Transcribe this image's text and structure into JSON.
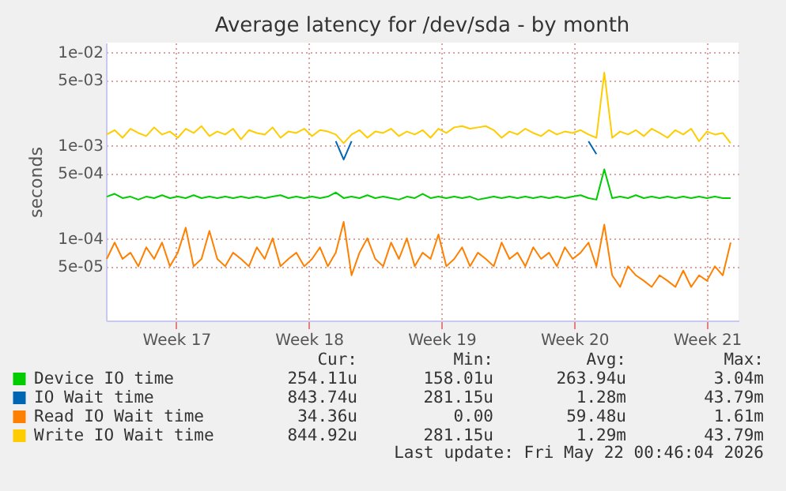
{
  "chart_data": {
    "type": "line",
    "title": "Average latency for /dev/sda - by month",
    "ylabel": "seconds",
    "log": "y",
    "grid": true,
    "legend": "bottom left",
    "xlim": [
      "2026-04-19T19:00",
      "2026-05-23T04:00"
    ],
    "xticks": [
      {
        "value": "2026-04-23T12:00",
        "label": "Week 17"
      },
      {
        "value": "2026-04-30T12:00",
        "label": "Week 18"
      },
      {
        "value": "2026-05-07T12:00",
        "label": "Week 19"
      },
      {
        "value": "2026-05-14T12:00",
        "label": "Week 20"
      },
      {
        "value": "2026-05-21T12:00",
        "label": "Week 21"
      }
    ],
    "ylim": [
      1.31e-05,
      0.0126
    ],
    "yticks": [
      {
        "value": 5e-05,
        "label": "5e-05"
      },
      {
        "value": 0.0001,
        "label": "1e-04"
      },
      {
        "value": 0.0005,
        "label": "5e-04"
      },
      {
        "value": 0.001,
        "label": "1e-03"
      },
      {
        "value": 0.005,
        "label": "5e-03"
      },
      {
        "value": 0.01,
        "label": "1e-02"
      }
    ],
    "x": [
      "2026-04-19T20:00",
      "2026-04-20T06:00",
      "2026-04-20T16:00",
      "2026-04-21T02:00",
      "2026-04-21T12:00",
      "2026-04-21T22:00",
      "2026-04-22T08:00",
      "2026-04-22T18:00",
      "2026-04-23T04:00",
      "2026-04-23T14:00",
      "2026-04-24T00:00",
      "2026-04-24T10:00",
      "2026-04-24T20:00",
      "2026-04-25T06:00",
      "2026-04-25T16:00",
      "2026-04-26T02:00",
      "2026-04-26T12:00",
      "2026-04-26T22:00",
      "2026-04-27T08:00",
      "2026-04-27T18:00",
      "2026-04-28T04:00",
      "2026-04-28T14:00",
      "2026-04-29T00:00",
      "2026-04-29T10:00",
      "2026-04-29T20:00",
      "2026-04-30T06:00",
      "2026-04-30T16:00",
      "2026-05-01T02:00",
      "2026-05-01T12:00",
      "2026-05-01T22:00",
      "2026-05-02T08:00",
      "2026-05-02T18:00",
      "2026-05-03T04:00",
      "2026-05-03T14:00",
      "2026-05-04T00:00",
      "2026-05-04T10:00",
      "2026-05-04T20:00",
      "2026-05-05T06:00",
      "2026-05-05T16:00",
      "2026-05-06T02:00",
      "2026-05-06T12:00",
      "2026-05-06T22:00",
      "2026-05-07T08:00",
      "2026-05-07T18:00",
      "2026-05-08T04:00",
      "2026-05-08T14:00",
      "2026-05-09T00:00",
      "2026-05-09T10:00",
      "2026-05-09T20:00",
      "2026-05-10T06:00",
      "2026-05-10T16:00",
      "2026-05-11T02:00",
      "2026-05-11T12:00",
      "2026-05-11T22:00",
      "2026-05-12T08:00",
      "2026-05-12T18:00",
      "2026-05-13T04:00",
      "2026-05-13T14:00",
      "2026-05-14T00:00",
      "2026-05-14T10:00",
      "2026-05-14T20:00",
      "2026-05-15T06:00",
      "2026-05-15T16:00",
      "2026-05-16T02:00",
      "2026-05-16T12:00",
      "2026-05-16T22:00",
      "2026-05-17T08:00",
      "2026-05-17T18:00",
      "2026-05-18T04:00",
      "2026-05-18T14:00",
      "2026-05-19T00:00",
      "2026-05-19T10:00",
      "2026-05-19T20:00",
      "2026-05-20T06:00",
      "2026-05-20T16:00",
      "2026-05-21T02:00",
      "2026-05-21T12:00",
      "2026-05-21T22:00",
      "2026-05-22T08:00",
      "2026-05-22T18:00"
    ],
    "series": [
      {
        "name": "Device IO time",
        "color": "#00cc00",
        "values": [
          0.00028,
          0.0003,
          0.00027,
          0.00028,
          0.00026,
          0.00028,
          0.00027,
          0.00029,
          0.00027,
          0.00028,
          0.00027,
          0.00029,
          0.00027,
          0.00028,
          0.00027,
          0.00028,
          0.00027,
          0.00028,
          0.00027,
          0.00028,
          0.00027,
          0.00028,
          0.00029,
          0.00027,
          0.00028,
          0.00027,
          0.00028,
          0.00027,
          0.00028,
          0.00031,
          0.00027,
          0.00028,
          0.00027,
          0.00029,
          0.00027,
          0.00028,
          0.00027,
          0.00026,
          0.00028,
          0.00027,
          0.0003,
          0.00027,
          0.00028,
          0.00027,
          0.00028,
          0.00027,
          0.00028,
          0.00026,
          0.00027,
          0.00028,
          0.00027,
          0.00028,
          0.00027,
          0.00028,
          0.00027,
          0.00028,
          0.00027,
          0.00028,
          0.00027,
          0.00028,
          0.00029,
          0.00027,
          0.00026,
          0.00055,
          0.00027,
          0.00028,
          0.00027,
          0.00029,
          0.00027,
          0.00028,
          0.00027,
          0.00028,
          0.00027,
          0.00028,
          0.00027,
          0.00028,
          0.00027,
          0.00028,
          0.00027,
          0.00027
        ]
      },
      {
        "name": "IO Wait time",
        "color": "#0066b3",
        "values": [
          null,
          null,
          null,
          null,
          null,
          null,
          null,
          null,
          null,
          null,
          null,
          null,
          null,
          null,
          null,
          null,
          null,
          null,
          null,
          null,
          null,
          null,
          null,
          null,
          null,
          null,
          null,
          null,
          null,
          0.0011,
          0.0007,
          0.0011,
          null,
          null,
          null,
          null,
          null,
          null,
          null,
          null,
          null,
          null,
          null,
          null,
          null,
          null,
          null,
          null,
          null,
          null,
          null,
          null,
          null,
          null,
          null,
          null,
          null,
          null,
          null,
          null,
          null,
          0.0011,
          0.0008,
          null,
          null,
          null,
          null,
          null,
          null,
          null,
          null,
          null,
          null,
          null,
          null,
          null,
          null,
          null,
          null,
          null
        ]
      },
      {
        "name": "Read IO Wait time",
        "color": "#ff8000",
        "values": [
          6e-05,
          9e-05,
          6e-05,
          7e-05,
          5e-05,
          8e-05,
          6e-05,
          9e-05,
          5e-05,
          7e-05,
          0.00013,
          5e-05,
          6e-05,
          0.00012,
          6e-05,
          5e-05,
          7e-05,
          6e-05,
          5e-05,
          8e-05,
          6e-05,
          0.0001,
          5e-05,
          6e-05,
          7e-05,
          5e-05,
          6e-05,
          8e-05,
          5e-05,
          7e-05,
          0.00015,
          4e-05,
          7e-05,
          0.0001,
          6e-05,
          5e-05,
          9e-05,
          6e-05,
          0.0001,
          5e-05,
          7e-05,
          6e-05,
          0.00011,
          5e-05,
          6e-05,
          8e-05,
          5e-05,
          7e-05,
          6e-05,
          5e-05,
          9e-05,
          6e-05,
          7e-05,
          5e-05,
          8e-05,
          6e-05,
          7e-05,
          5e-05,
          8e-05,
          6e-05,
          7e-05,
          9e-05,
          5e-05,
          0.00014,
          4e-05,
          3e-05,
          5e-05,
          4e-05,
          3.5e-05,
          3e-05,
          4e-05,
          3.5e-05,
          3e-05,
          4.5e-05,
          3e-05,
          4e-05,
          3.5e-05,
          5e-05,
          4e-05,
          9e-05
        ]
      },
      {
        "name": "Write IO Wait time",
        "color": "#ffcc00",
        "values": [
          0.0013,
          0.00145,
          0.0012,
          0.0015,
          0.00135,
          0.00125,
          0.00155,
          0.0013,
          0.0014,
          0.0012,
          0.0015,
          0.00135,
          0.0016,
          0.00125,
          0.0014,
          0.0013,
          0.0015,
          0.00115,
          0.00145,
          0.00135,
          0.0013,
          0.00155,
          0.0012,
          0.0014,
          0.00135,
          0.0015,
          0.00125,
          0.00145,
          0.0014,
          0.0013,
          0.00105,
          0.0013,
          0.00145,
          0.0012,
          0.0014,
          0.00135,
          0.0015,
          0.00125,
          0.0014,
          0.0013,
          0.00145,
          0.0012,
          0.0015,
          0.00135,
          0.00155,
          0.0016,
          0.0015,
          0.00155,
          0.0016,
          0.00145,
          0.0012,
          0.0014,
          0.0013,
          0.0015,
          0.00135,
          0.00125,
          0.00145,
          0.0013,
          0.0014,
          0.00135,
          0.00145,
          0.0013,
          0.0012,
          0.006,
          0.0012,
          0.0014,
          0.0013,
          0.00145,
          0.00125,
          0.0015,
          0.00135,
          0.0012,
          0.00145,
          0.0013,
          0.0015,
          0.0011,
          0.0014,
          0.0013,
          0.00135,
          0.00105
        ]
      }
    ],
    "annotations": [
      "Cur:",
      "Min:",
      "Avg:",
      "Max:",
      "254.11u",
      "158.01u",
      "263.94u",
      "3.04m",
      "843.74u",
      "281.15u",
      "1.28m",
      "43.79m",
      "34.36u",
      "0.00",
      "59.48u",
      "1.61m",
      "844.92u",
      "281.15u",
      "1.29m",
      "43.79m",
      "Last update: Fri May 22 00:46:04 2026"
    ]
  }
}
